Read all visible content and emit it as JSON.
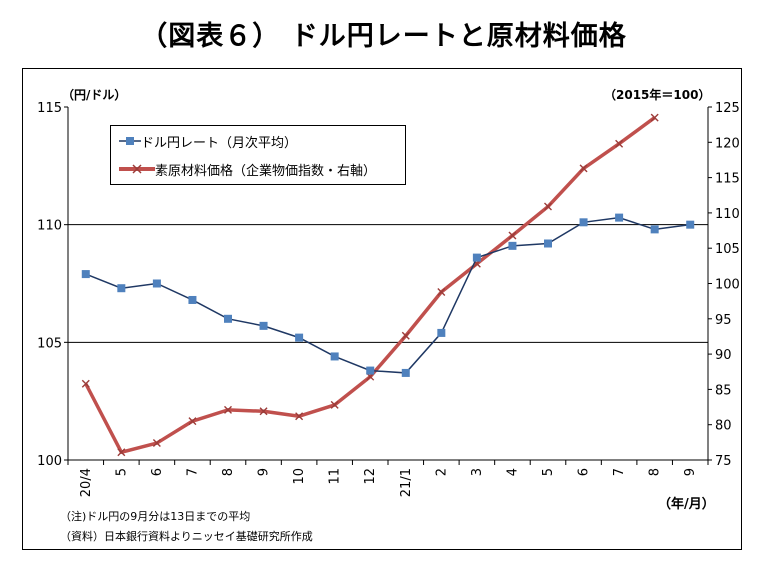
{
  "title": "（図表６） ドル円レートと原材料価格",
  "left_axis_unit": "（円/ドル）",
  "right_axis_unit": "（2015年＝100）",
  "x_axis_unit": "（年/月）",
  "notes": [
    "（注)ドル円の9月分は13日までの平均",
    "（資料）日本銀行資料よりニッセイ基礎研究所作成"
  ],
  "colors": {
    "usdjpy": "#4f81bd",
    "materials": "#c0504d"
  },
  "chart_data": {
    "type": "line",
    "categories": [
      "20/4",
      "5",
      "6",
      "7",
      "8",
      "9",
      "10",
      "11",
      "12",
      "21/1",
      "2",
      "3",
      "4",
      "5",
      "6",
      "7",
      "8",
      "9"
    ],
    "series": [
      {
        "name": "ドル円レート（月次平均）",
        "axis": "left",
        "marker": "square",
        "values": [
          107.9,
          107.3,
          107.5,
          106.8,
          106.0,
          105.7,
          105.2,
          104.4,
          103.8,
          103.7,
          105.4,
          108.6,
          109.1,
          109.2,
          110.1,
          110.3,
          109.8,
          110.0
        ]
      },
      {
        "name": "素原材料価格（企業物価指数・右軸）",
        "axis": "right",
        "marker": "x",
        "values": [
          85.8,
          76.1,
          77.4,
          80.5,
          82.1,
          81.9,
          81.2,
          82.8,
          86.8,
          92.6,
          98.8,
          102.8,
          106.8,
          110.9,
          116.3,
          119.8,
          123.5,
          null
        ]
      }
    ],
    "y_left": {
      "min": 100,
      "max": 115,
      "ticks": [
        100,
        105,
        110,
        115
      ],
      "gridlines": [
        105,
        110
      ]
    },
    "y_right": {
      "min": 75,
      "max": 125,
      "ticks": [
        75,
        80,
        85,
        90,
        95,
        100,
        105,
        110,
        115,
        120,
        125
      ]
    },
    "legend_position": "top-left"
  }
}
